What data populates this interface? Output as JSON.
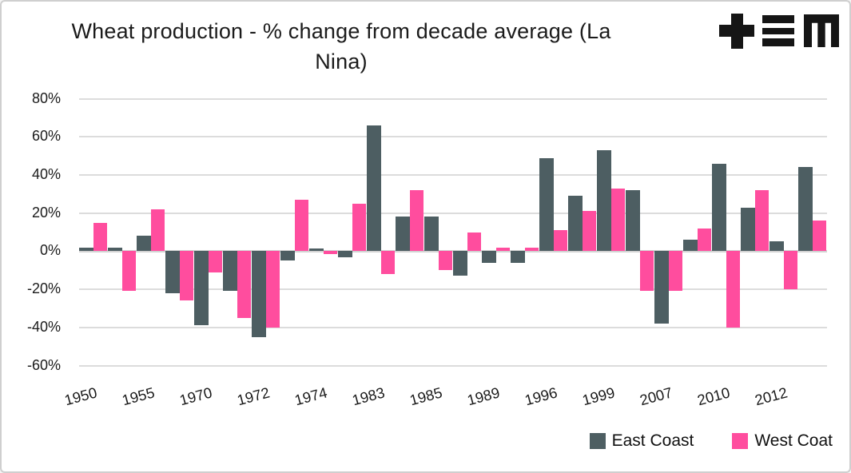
{
  "header": {
    "title_line1": "Wheat production - % change from decade average (La",
    "title_line2": "Nina)",
    "logo": {
      "name": "tem-logo",
      "color": "#151515"
    }
  },
  "chart_data": {
    "type": "bar",
    "title": "Wheat production - % change from decade average (La Nina)",
    "xlabel": "",
    "ylabel": "",
    "ylim": [
      -60,
      80
    ],
    "yticks": [
      80,
      60,
      40,
      20,
      0,
      -20,
      -40,
      -60
    ],
    "ytick_suffix": "%",
    "grid": "horizontal",
    "legend_position": "bottom-right",
    "categories": [
      "1950",
      "",
      "1955",
      "",
      "1970",
      "",
      "1972",
      "",
      "1974",
      "",
      "1983",
      "",
      "1985",
      "",
      "1989",
      "",
      "1996",
      "",
      "1999",
      "",
      "2007",
      "",
      "2010",
      "",
      "2012",
      ""
    ],
    "series": [
      {
        "name": "East Coast",
        "color": "#4d5e62",
        "values": [
          2,
          2,
          8,
          -22,
          -39,
          -21,
          -45,
          -5,
          1.5,
          -3,
          66,
          18,
          18,
          -13,
          -6,
          -6,
          49,
          29,
          53,
          32,
          -38,
          6,
          46,
          23,
          5,
          44
        ]
      },
      {
        "name": "West Coat",
        "color": "#ff4d9e",
        "values": [
          15,
          -21,
          22,
          -26,
          -11,
          -35,
          -40,
          27,
          -1.5,
          25,
          -12,
          32,
          -10,
          10,
          2,
          2,
          11,
          21,
          33,
          -21,
          -21,
          12,
          -40,
          32,
          -20,
          16
        ]
      }
    ]
  },
  "legend": {
    "east_label": "East Coast",
    "west_label": "West Coat"
  }
}
